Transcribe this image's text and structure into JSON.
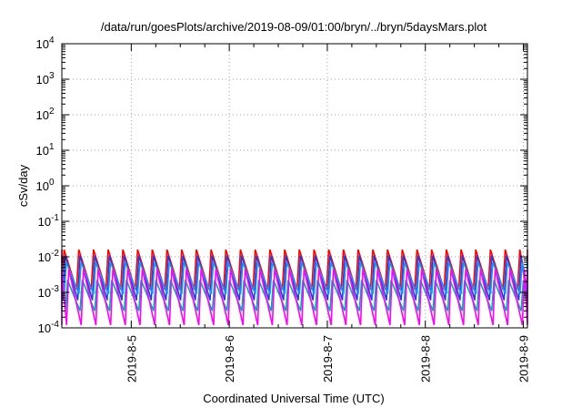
{
  "chart_data": {
    "type": "line",
    "title": "/data/run/goesPlots/archive/2019-08-09/01:00/bryn/../bryn/5daysMars.plot",
    "xlabel": "Coordinated Universal Time (UTC)",
    "ylabel": "cSv/day",
    "x_range": [
      "2019-08-04T07:00",
      "2019-08-09T01:00"
    ],
    "x_ticks": [
      "2019-8-5",
      "2019-8-6",
      "2019-8-7",
      "2019-8-8",
      "2019-8-9"
    ],
    "y_scale": "log",
    "ylim": [
      0.0001,
      10000
    ],
    "y_ticks": [
      {
        "base": "10",
        "exp": "-4"
      },
      {
        "base": "10",
        "exp": "-3"
      },
      {
        "base": "10",
        "exp": "-2"
      },
      {
        "base": "10",
        "exp": "-1"
      },
      {
        "base": "10",
        "exp": "0"
      },
      {
        "base": "10",
        "exp": "1"
      },
      {
        "base": "10",
        "exp": "2"
      },
      {
        "base": "10",
        "exp": "3"
      },
      {
        "base": "10",
        "exp": "4"
      }
    ],
    "grid": true,
    "sawtooth_period_hours": 3.6,
    "series": [
      {
        "color": "#ff0000",
        "peak": 0.016,
        "trough": 0.0012
      },
      {
        "color": "#2a3bd8",
        "peak": 0.011,
        "trough": 0.0006
      },
      {
        "color": "#1e90ff",
        "peak": 0.007,
        "trough": 0.0009
      },
      {
        "color": "#00aaaa",
        "peak": 0.0022,
        "trough": 0.0003
      },
      {
        "color": "#ff00ff",
        "peak": 0.0045,
        "trough": 0.00012
      }
    ]
  }
}
